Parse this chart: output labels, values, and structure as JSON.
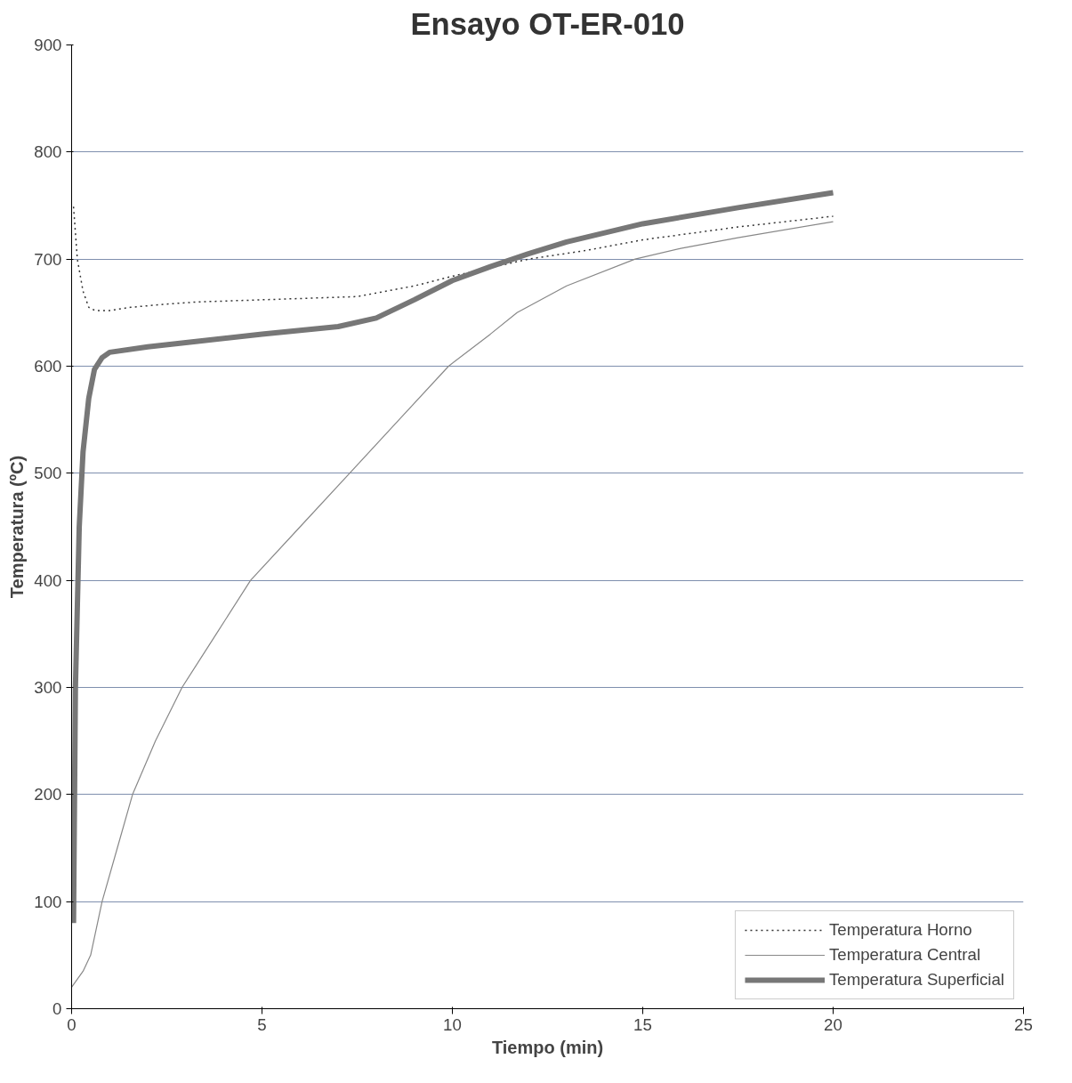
{
  "chart_data": {
    "type": "line",
    "title": "Ensayo OT-ER-010",
    "xlabel": "Tiempo (min)",
    "ylabel": "Temperatura (ºC)",
    "xlim": [
      0,
      25
    ],
    "ylim": [
      0,
      900
    ],
    "xticks": [
      0,
      5,
      10,
      15,
      20,
      25
    ],
    "yticks": [
      0,
      100,
      200,
      300,
      400,
      500,
      600,
      700,
      800,
      900
    ],
    "grid": "y",
    "legend": "bottom right",
    "series": [
      {
        "name": "Temperatura Horno",
        "color": "#333333",
        "line_style": "dotted",
        "x": [
          0.05,
          0.15,
          0.3,
          0.45,
          0.62,
          1,
          1.55,
          2.5,
          3.3,
          5,
          7.5,
          9,
          10,
          11,
          12,
          13.5,
          15,
          17.5,
          20
        ],
        "values": [
          749,
          700,
          670,
          655,
          652,
          652,
          655,
          658,
          660,
          662,
          665,
          675,
          684,
          692,
          700,
          708,
          718,
          730,
          740
        ]
      },
      {
        "name": "Temperatura Central",
        "color": "#888888",
        "line_style": "solid",
        "x": [
          0,
          0.3,
          0.5,
          0.8,
          1.2,
          1.6,
          2.2,
          2.9,
          3.8,
          4.7,
          6,
          7.3,
          8.6,
          9.9,
          11,
          11.7,
          13,
          14.8,
          16,
          17.5,
          20
        ],
        "values": [
          20,
          35,
          50,
          100,
          150,
          200,
          250,
          300,
          350,
          400,
          450,
          500,
          550,
          600,
          630,
          650,
          675,
          700,
          710,
          720,
          735
        ]
      },
      {
        "name": "Temperatura Superficial",
        "color": "#777777",
        "line_style": "solid",
        "x": [
          0.05,
          0.1,
          0.2,
          0.3,
          0.45,
          0.6,
          0.8,
          1,
          2,
          3,
          5,
          7,
          8,
          9,
          10,
          11,
          12,
          13,
          15,
          17.5,
          20
        ],
        "values": [
          80,
          300,
          450,
          520,
          570,
          597,
          608,
          613,
          618,
          622,
          630,
          637,
          645,
          662,
          680,
          693,
          705,
          716,
          733,
          748,
          762
        ]
      }
    ]
  }
}
